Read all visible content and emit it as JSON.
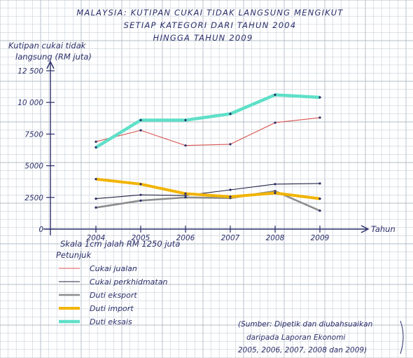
{
  "chart_data": {
    "type": "line",
    "title": "MALAYSIA: KUTIPAN CUKAI TIDAK LANGSUNG MENGIKUT",
    "title_line2": "SETIAP KATEGORI DARI TAHUN 2004",
    "title_line3": "HINGGA TAHUN 2009",
    "ylabel_line1": "Kutipan cukai tidak",
    "ylabel_line2": "langsung (RM juta)",
    "xlabel": "Tahun",
    "scale_note": "Skala 1cm jalah RM 1250 juta",
    "legend_title": "Petunjuk",
    "legend_placement": "bottom-left",
    "source_note": [
      "(Sumber: Dipetik dan diubahsuaikan",
      "daripada Laporan Ekonomi",
      "2005, 2006, 2007, 2008 dan 2009)"
    ],
    "y_ticks": [
      "0",
      "2500",
      "5000",
      "7500",
      "10 000",
      "12 500"
    ],
    "y_tick_values": [
      0,
      2500,
      5000,
      7500,
      10000,
      12500
    ],
    "ylim": [
      0,
      12500
    ],
    "categories": [
      "2004",
      "2005",
      "2006",
      "2007",
      "2008",
      "2009"
    ],
    "grid": true,
    "series": [
      {
        "name": "Cukai jualan",
        "color": "#d9534f",
        "values": [
          6900,
          7800,
          6600,
          6700,
          8400,
          8800
        ]
      },
      {
        "name": "Cukai perkhidmatan",
        "color": "#222244",
        "values": [
          2400,
          2700,
          2650,
          3100,
          3550,
          3600
        ]
      },
      {
        "name": "Duti eksport",
        "color": "#8c8c8c",
        "values": [
          1700,
          2250,
          2500,
          2450,
          3000,
          1450
        ]
      },
      {
        "name": "Duti import",
        "color": "#f2b400",
        "values": [
          3950,
          3550,
          2800,
          2550,
          2850,
          2400
        ]
      },
      {
        "name": "Duti eksais",
        "color": "#5fe0c8",
        "values": [
          6450,
          8600,
          8600,
          9100,
          10600,
          10400
        ]
      }
    ]
  }
}
